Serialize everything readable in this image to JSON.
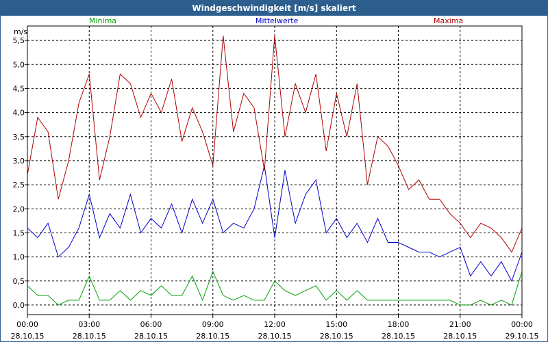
{
  "window_title": "Windgeschwindigkeit [m/s] skaliert",
  "chart_data": {
    "type": "line",
    "title": "Windgeschwindigkeit [m/s] skaliert",
    "ylabel": "m/s",
    "ylim": [
      -0.2,
      5.8
    ],
    "y_ticks": [
      "0,0",
      "0,5",
      "1,0",
      "1,5",
      "2,0",
      "2,5",
      "3,0",
      "3,5",
      "4,0",
      "4,5",
      "5,0",
      "5,5"
    ],
    "x_ticks": [
      {
        "time": "00:00",
        "date": "28.10.15"
      },
      {
        "time": "03:00",
        "date": "28.10.15"
      },
      {
        "time": "06:00",
        "date": "28.10.15"
      },
      {
        "time": "09:00",
        "date": "28.10.15"
      },
      {
        "time": "12:00",
        "date": "28.10.15"
      },
      {
        "time": "15:00",
        "date": "28.10.15"
      },
      {
        "time": "18:00",
        "date": "28.10.15"
      },
      {
        "time": "21:00",
        "date": "28.10.15"
      },
      {
        "time": "00:00",
        "date": "29.10.15"
      }
    ],
    "xlim_hours": [
      0,
      24
    ],
    "grid": true,
    "series": [
      {
        "name": "Minima",
        "color": "#00a000",
        "x_hours": [
          0,
          0.5,
          1,
          1.5,
          2,
          2.5,
          3,
          3.5,
          4,
          4.5,
          5,
          5.5,
          6,
          6.5,
          7,
          7.5,
          8,
          8.5,
          9,
          9.5,
          10,
          10.5,
          11,
          11.5,
          12,
          12.5,
          13,
          13.5,
          14,
          14.5,
          15,
          15.5,
          16,
          16.5,
          17,
          17.5,
          18,
          18.5,
          19,
          19.5,
          20,
          20.5,
          21,
          21.5,
          22,
          22.5,
          23,
          23.5,
          24
        ],
        "values": [
          0.4,
          0.2,
          0.2,
          0.0,
          0.1,
          0.1,
          0.6,
          0.1,
          0.1,
          0.3,
          0.1,
          0.3,
          0.2,
          0.4,
          0.2,
          0.2,
          0.6,
          0.1,
          0.7,
          0.2,
          0.1,
          0.2,
          0.1,
          0.1,
          0.5,
          0.3,
          0.2,
          0.3,
          0.4,
          0.1,
          0.3,
          0.1,
          0.3,
          0.1,
          0.1,
          0.1,
          0.1,
          0.1,
          0.1,
          0.1,
          0.1,
          0.1,
          0.0,
          0.0,
          0.1,
          0.0,
          0.1,
          0.0,
          0.7
        ]
      },
      {
        "name": "Mittelwerte",
        "color": "#0000cc",
        "x_hours": [
          0,
          0.5,
          1,
          1.5,
          2,
          2.5,
          3,
          3.5,
          4,
          4.5,
          5,
          5.5,
          6,
          6.5,
          7,
          7.5,
          8,
          8.5,
          9,
          9.5,
          10,
          10.5,
          11,
          11.5,
          12,
          12.5,
          13,
          13.5,
          14,
          14.5,
          15,
          15.5,
          16,
          16.5,
          17,
          17.5,
          18,
          18.5,
          19,
          19.5,
          20,
          20.5,
          21,
          21.5,
          22,
          22.5,
          23,
          23.5,
          24
        ],
        "values": [
          1.6,
          1.4,
          1.7,
          1.0,
          1.2,
          1.6,
          2.3,
          1.4,
          1.9,
          1.6,
          2.3,
          1.5,
          1.8,
          1.6,
          2.1,
          1.5,
          2.2,
          1.7,
          2.2,
          1.5,
          1.7,
          1.6,
          2.0,
          2.9,
          1.4,
          2.8,
          1.7,
          2.3,
          2.6,
          1.5,
          1.8,
          1.4,
          1.7,
          1.3,
          1.8,
          1.3,
          1.3,
          1.2,
          1.1,
          1.1,
          1.0,
          1.1,
          1.2,
          0.6,
          0.9,
          0.6,
          0.9,
          0.5,
          1.1
        ]
      },
      {
        "name": "Maxima",
        "color": "#b00000",
        "x_hours": [
          0,
          0.5,
          1,
          1.5,
          2,
          2.5,
          3,
          3.5,
          4,
          4.5,
          5,
          5.5,
          6,
          6.5,
          7,
          7.5,
          8,
          8.5,
          9,
          9.5,
          10,
          10.5,
          11,
          11.5,
          12,
          12.5,
          13,
          13.5,
          14,
          14.5,
          15,
          15.5,
          16,
          16.5,
          17,
          17.5,
          18,
          18.5,
          19,
          19.5,
          20,
          20.5,
          21,
          21.5,
          22,
          22.5,
          23,
          23.5,
          24
        ],
        "values": [
          2.7,
          3.9,
          3.6,
          2.2,
          3.0,
          4.2,
          4.8,
          2.6,
          3.5,
          4.8,
          4.6,
          3.9,
          4.4,
          4.0,
          4.7,
          3.4,
          4.1,
          3.6,
          2.9,
          5.6,
          3.6,
          4.4,
          4.1,
          2.8,
          5.6,
          3.5,
          4.6,
          4.0,
          4.8,
          3.2,
          4.4,
          3.5,
          4.6,
          2.5,
          3.5,
          3.3,
          2.9,
          2.4,
          2.6,
          2.2,
          2.2,
          1.9,
          1.7,
          1.4,
          1.7,
          1.6,
          1.4,
          1.1,
          1.6
        ]
      }
    ]
  }
}
